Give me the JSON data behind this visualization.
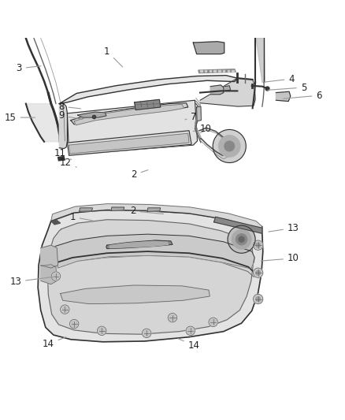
{
  "background_color": "#ffffff",
  "label_color": "#222222",
  "label_fontsize": 8.5,
  "figsize": [
    4.38,
    5.33
  ],
  "dpi": 100,
  "top_annotations": [
    [
      "3",
      [
        0.055,
        0.91
      ],
      [
        0.125,
        0.918
      ]
    ],
    [
      "1",
      [
        0.31,
        0.96
      ],
      [
        0.36,
        0.91
      ]
    ],
    [
      "4",
      [
        0.845,
        0.88
      ],
      [
        0.76,
        0.87
      ]
    ],
    [
      "5",
      [
        0.88,
        0.855
      ],
      [
        0.77,
        0.847
      ]
    ],
    [
      "6",
      [
        0.925,
        0.832
      ],
      [
        0.815,
        0.822
      ]
    ],
    [
      "15",
      [
        0.03,
        0.768
      ],
      [
        0.108,
        0.768
      ]
    ],
    [
      "8",
      [
        0.178,
        0.8
      ],
      [
        0.24,
        0.793
      ]
    ],
    [
      "9",
      [
        0.178,
        0.773
      ],
      [
        0.245,
        0.762
      ]
    ],
    [
      "7",
      [
        0.562,
        0.77
      ],
      [
        0.53,
        0.76
      ]
    ],
    [
      "10",
      [
        0.595,
        0.736
      ],
      [
        0.56,
        0.728
      ]
    ],
    [
      "11",
      [
        0.175,
        0.664
      ],
      [
        0.207,
        0.646
      ]
    ],
    [
      "12",
      [
        0.19,
        0.636
      ],
      [
        0.228,
        0.622
      ]
    ],
    [
      "2",
      [
        0.388,
        0.602
      ],
      [
        0.435,
        0.618
      ]
    ]
  ],
  "bot_annotations": [
    [
      "2",
      [
        0.385,
        0.497
      ],
      [
        0.48,
        0.488
      ]
    ],
    [
      "1",
      [
        0.21,
        0.48
      ],
      [
        0.275,
        0.468
      ]
    ],
    [
      "13",
      [
        0.85,
        0.448
      ],
      [
        0.772,
        0.436
      ]
    ],
    [
      "10",
      [
        0.85,
        0.36
      ],
      [
        0.75,
        0.352
      ]
    ],
    [
      "13",
      [
        0.045,
        0.292
      ],
      [
        0.168,
        0.308
      ]
    ],
    [
      "14",
      [
        0.14,
        0.112
      ],
      [
        0.197,
        0.134
      ]
    ],
    [
      "14",
      [
        0.562,
        0.108
      ],
      [
        0.51,
        0.13
      ]
    ]
  ]
}
